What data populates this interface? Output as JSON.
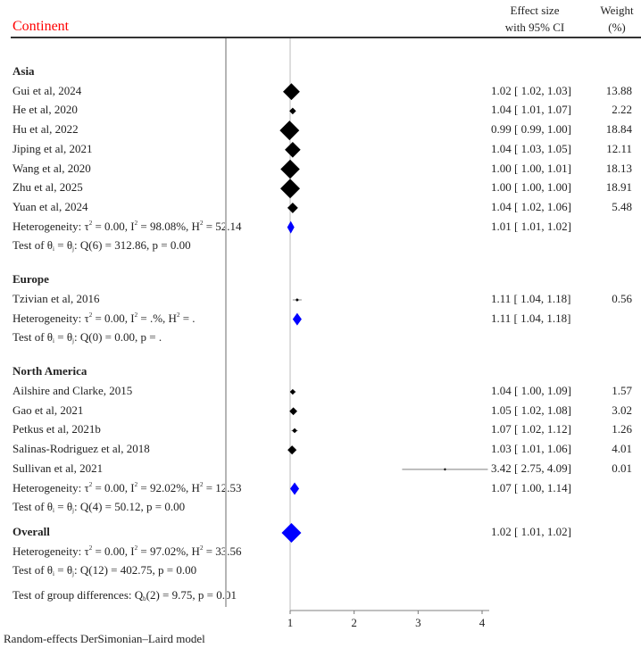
{
  "header": {
    "column_title": "Continent",
    "effect_label_1": "Effect size",
    "effect_label_2": "with 95% CI",
    "weight_label_1": "Weight",
    "weight_label_2": "(%)"
  },
  "footer_note": "Random-effects DerSimonian–Laird model",
  "chart_data": {
    "type": "forest",
    "title": "",
    "xlabel": "",
    "x_ticks": [
      "1",
      "2",
      "3",
      "4"
    ],
    "xlim": [
      1,
      4
    ],
    "reference_line": 1,
    "groups": [
      {
        "name": "Asia",
        "studies": [
          {
            "label": "Gui et al, 2024",
            "es": 1.02,
            "lo": 1.02,
            "hi": 1.03,
            "ci_text": "1.02 [ 1.02,  1.03]",
            "weight": "13.88"
          },
          {
            "label": "He et al, 2020",
            "es": 1.04,
            "lo": 1.01,
            "hi": 1.07,
            "ci_text": "1.04 [ 1.01,  1.07]",
            "weight": "2.22"
          },
          {
            "label": "Hu et al, 2022",
            "es": 0.99,
            "lo": 0.99,
            "hi": 1.0,
            "ci_text": "0.99 [ 0.99,  1.00]",
            "weight": "18.84"
          },
          {
            "label": "Jiping et al, 2021",
            "es": 1.04,
            "lo": 1.03,
            "hi": 1.05,
            "ci_text": "1.04 [ 1.03,  1.05]",
            "weight": "12.11"
          },
          {
            "label": "Wang et al, 2020",
            "es": 1.0,
            "lo": 1.0,
            "hi": 1.01,
            "ci_text": "1.00 [ 1.00,  1.01]",
            "weight": "18.13"
          },
          {
            "label": "Zhu et al, 2025",
            "es": 1.0,
            "lo": 1.0,
            "hi": 1.0,
            "ci_text": "1.00 [ 1.00,  1.00]",
            "weight": "18.91"
          },
          {
            "label": "Yuan et al, 2024",
            "es": 1.04,
            "lo": 1.02,
            "hi": 1.06,
            "ci_text": "1.04 [ 1.02,  1.06]",
            "weight": "5.48"
          }
        ],
        "summary": {
          "es": 1.01,
          "lo": 1.01,
          "hi": 1.02,
          "ci_text": "1.01 [ 1.01,  1.02]"
        },
        "heterogeneity": {
          "tau2": "0.00",
          "I2": "98.08%",
          "H2": "52.14"
        },
        "test": {
          "df": "6",
          "Q": "312.86",
          "p": "0.00"
        }
      },
      {
        "name": "Europe",
        "studies": [
          {
            "label": "Tzivian et al, 2016",
            "es": 1.11,
            "lo": 1.04,
            "hi": 1.18,
            "ci_text": "1.11 [ 1.04,  1.18]",
            "weight": "0.56"
          }
        ],
        "summary": {
          "es": 1.11,
          "lo": 1.04,
          "hi": 1.18,
          "ci_text": "1.11 [ 1.04,  1.18]"
        },
        "heterogeneity": {
          "tau2": "0.00",
          "I2": ".%",
          "H2": "."
        },
        "test": {
          "df": "0",
          "Q": "0.00",
          "p": "."
        }
      },
      {
        "name": "North America",
        "studies": [
          {
            "label": "Ailshire and Clarke, 2015",
            "es": 1.04,
            "lo": 1.0,
            "hi": 1.09,
            "ci_text": "1.04 [ 1.00,  1.09]",
            "weight": "1.57"
          },
          {
            "label": "Gao et al, 2021",
            "es": 1.05,
            "lo": 1.02,
            "hi": 1.08,
            "ci_text": "1.05 [ 1.02,  1.08]",
            "weight": "3.02"
          },
          {
            "label": "Petkus et al, 2021b",
            "es": 1.07,
            "lo": 1.02,
            "hi": 1.12,
            "ci_text": "1.07 [ 1.02,  1.12]",
            "weight": "1.26"
          },
          {
            "label": "Salinas-Rodriguez et al, 2018",
            "es": 1.03,
            "lo": 1.01,
            "hi": 1.06,
            "ci_text": "1.03 [ 1.01,  1.06]",
            "weight": "4.01"
          },
          {
            "label": "Sullivan et al, 2021",
            "es": 3.42,
            "lo": 2.75,
            "hi": 4.09,
            "ci_text": "3.42 [ 2.75,  4.09]",
            "weight": "0.01"
          }
        ],
        "summary": {
          "es": 1.07,
          "lo": 1.0,
          "hi": 1.14,
          "ci_text": "1.07 [ 1.00,  1.14]"
        },
        "heterogeneity": {
          "tau2": "0.00",
          "I2": "92.02%",
          "H2": "12.53"
        },
        "test": {
          "df": "4",
          "Q": "50.12",
          "p": "0.00"
        }
      }
    ],
    "overall": {
      "label": "Overall",
      "es": 1.02,
      "lo": 1.01,
      "hi": 1.02,
      "ci_text": "1.02 [ 1.01,  1.02]",
      "heterogeneity": {
        "tau2": "0.00",
        "I2": "97.02%",
        "H2": "33.56"
      },
      "test": {
        "df": "12",
        "Q": "402.75",
        "p": "0.00"
      },
      "group_diff": {
        "df": "2",
        "Q": "9.75",
        "p": "0.01"
      }
    },
    "colors": {
      "study_marker": "#000000",
      "summary_marker": "#0000ff",
      "header_title": "#ff0000",
      "ci_line": "#999999",
      "ref_line": "#bbbbbb"
    }
  }
}
